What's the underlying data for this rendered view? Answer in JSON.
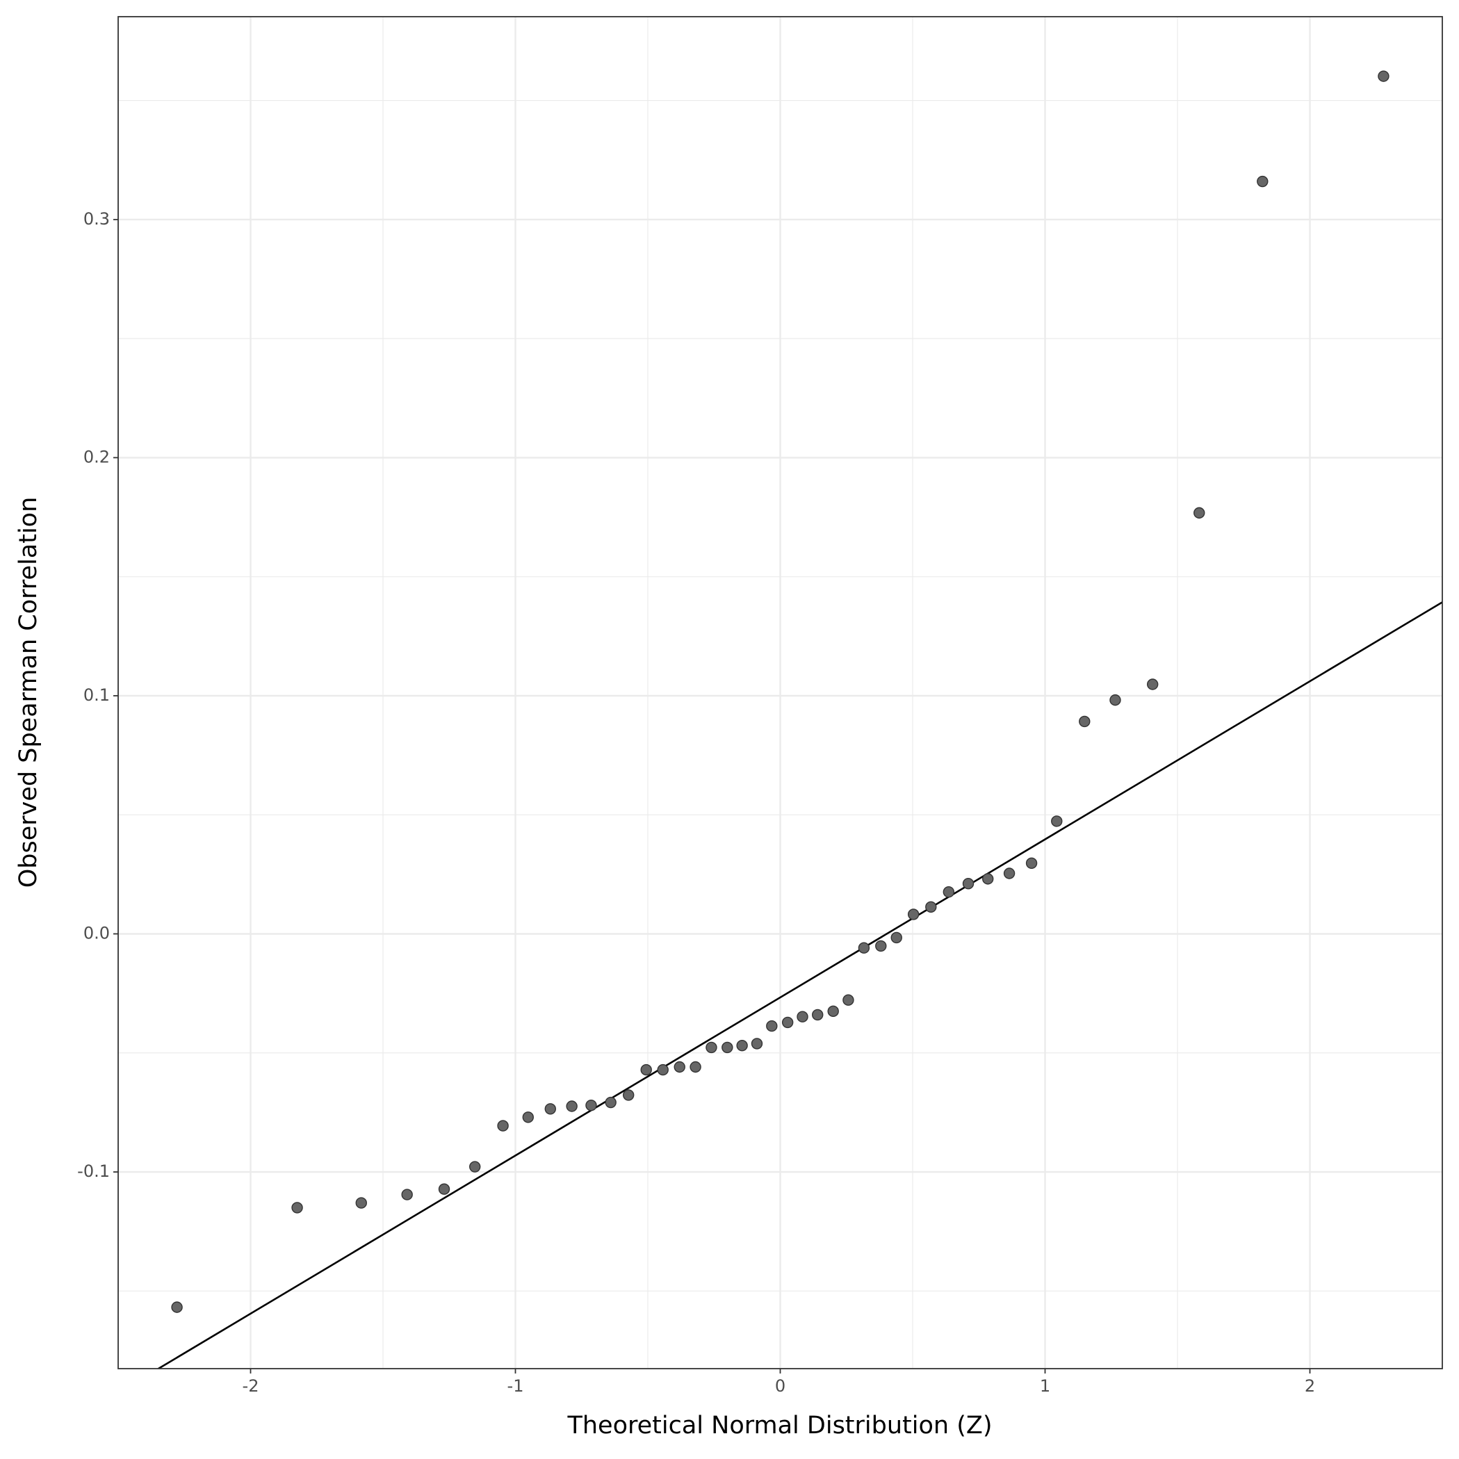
{
  "chart_data": {
    "type": "scatter",
    "x_label": "Theoretical Normal Distribution (Z)",
    "y_label": "Observed Spearman Correlation",
    "x": [
      -2.278,
      -1.824,
      -1.582,
      -1.409,
      -1.269,
      -1.153,
      -1.047,
      -0.952,
      -0.868,
      -0.787,
      -0.714,
      -0.64,
      -0.573,
      -0.506,
      -0.443,
      -0.38,
      -0.32,
      -0.26,
      -0.2,
      -0.144,
      -0.088,
      -0.032,
      0.028,
      0.084,
      0.141,
      0.2,
      0.257,
      0.316,
      0.38,
      0.439,
      0.503,
      0.569,
      0.636,
      0.71,
      0.784,
      0.865,
      0.949,
      1.044,
      1.149,
      1.265,
      1.406,
      1.582,
      1.821,
      2.278
    ],
    "values": [
      -0.1568,
      -0.115,
      -0.113,
      -0.1095,
      -0.1072,
      -0.0978,
      -0.0806,
      -0.077,
      -0.0735,
      -0.0724,
      -0.072,
      -0.0708,
      -0.0677,
      -0.0571,
      -0.0571,
      -0.0559,
      -0.0559,
      -0.0477,
      -0.0477,
      -0.0469,
      -0.0461,
      -0.0387,
      -0.0372,
      -0.0348,
      -0.034,
      -0.0325,
      -0.0278,
      -0.0059,
      -0.0051,
      -0.0016,
      0.0082,
      0.0113,
      0.0176,
      0.0211,
      0.0231,
      0.0254,
      0.0297,
      0.0473,
      0.0892,
      0.0982,
      0.1048,
      0.1768,
      0.316,
      0.3602
    ],
    "color": "#666666",
    "reference_line": {
      "intercept": -0.0267,
      "slope": 0.0664,
      "color": "#000000"
    },
    "xlim": [
      -2.5,
      2.5
    ],
    "xticks": [
      -2,
      -1,
      0,
      1,
      2
    ],
    "minor_xticks": [
      -1.5,
      -0.5,
      0.5,
      1.5
    ],
    "ylim": [
      -0.1826,
      0.3852
    ],
    "yticks": [
      -0.1,
      {
        "value": 0,
        "label": "0.0"
      },
      0.1,
      0.2,
      0.3
    ],
    "minor_yticks": [
      -0.15,
      -0.05,
      0.05,
      0.15,
      0.25,
      0.35
    ],
    "grid": true
  }
}
